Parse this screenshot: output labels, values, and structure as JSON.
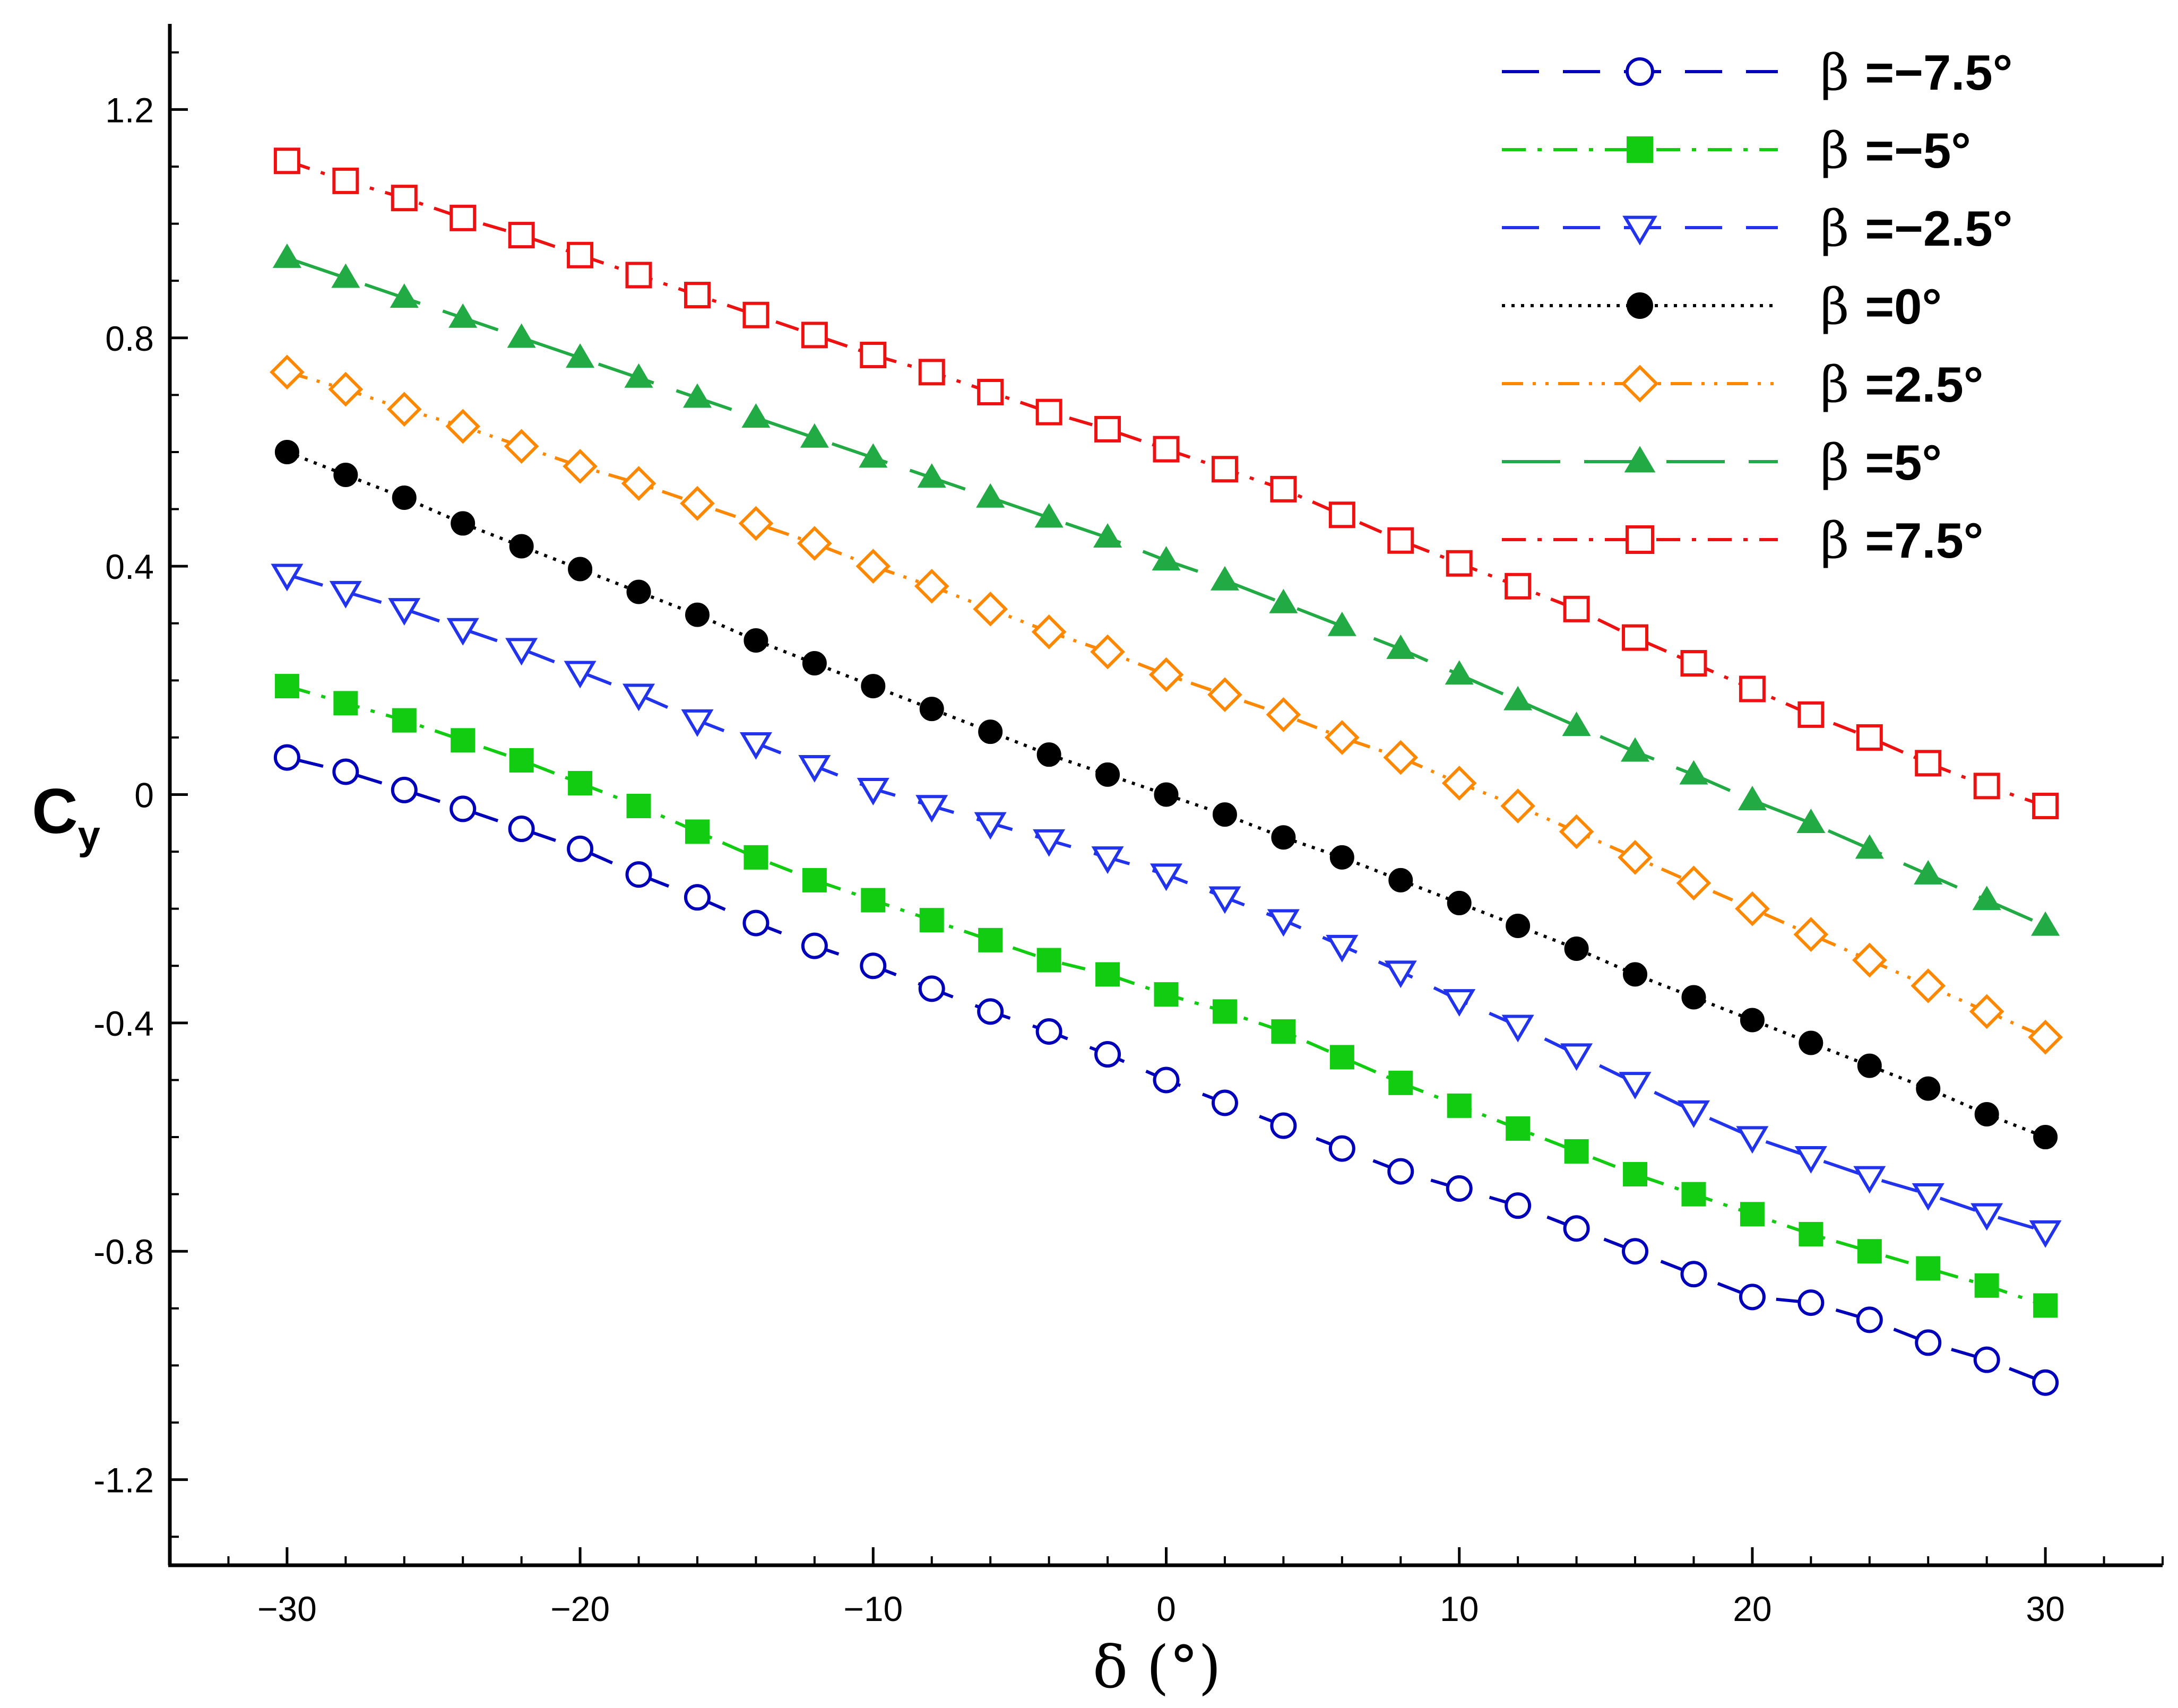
{
  "chart_data": {
    "type": "line",
    "xlabel": "δ (°)",
    "ylabel": "C",
    "ylabel_subscript": "y",
    "xlim": [
      -34,
      34
    ],
    "ylim": [
      -1.35,
      1.35
    ],
    "xticks": [
      -30,
      -20,
      -10,
      0,
      10,
      20,
      30
    ],
    "xtick_labels": [
      "−30",
      "−20",
      "−10",
      "0",
      "10",
      "20",
      "30"
    ],
    "yticks": [
      -1.2,
      -0.8,
      -0.4,
      0,
      0.4,
      0.8,
      1.2
    ],
    "ytick_labels": [
      "-1.2",
      "-0.8",
      "-0.4",
      "0",
      "0.4",
      "0.8",
      "1.2"
    ],
    "grid": false,
    "legend_position": "top-right",
    "x": [
      -30,
      -28,
      -26,
      -24,
      -22,
      -20,
      -18,
      -16,
      -14,
      -12,
      -10,
      -8,
      -6,
      -4,
      -2,
      0,
      2,
      4,
      6,
      8,
      10,
      12,
      14,
      16,
      18,
      20,
      22,
      24,
      26,
      28,
      30
    ],
    "series": [
      {
        "name": "β =−7.5°",
        "legend_beta": "β",
        "legend_value": "=−7.5°",
        "color": "#0000bb",
        "dash": "dash",
        "marker": "circle",
        "filled": false,
        "values": [
          0.065,
          0.04,
          0.008,
          -0.025,
          -0.06,
          -0.095,
          -0.14,
          -0.18,
          -0.225,
          -0.265,
          -0.3,
          -0.34,
          -0.38,
          -0.415,
          -0.455,
          -0.5,
          -0.54,
          -0.58,
          -0.62,
          -0.66,
          -0.69,
          -0.72,
          -0.76,
          -0.8,
          -0.84,
          -0.88,
          -0.89,
          -0.92,
          -0.96,
          -0.99,
          -1.03
        ]
      },
      {
        "name": "β =−5°",
        "legend_beta": "β",
        "legend_value": "=−5°",
        "color": "#11cc11",
        "dash": "dashdot",
        "marker": "square",
        "filled": true,
        "values": [
          0.19,
          0.16,
          0.13,
          0.095,
          0.06,
          0.02,
          -0.02,
          -0.065,
          -0.11,
          -0.15,
          -0.185,
          -0.22,
          -0.255,
          -0.29,
          -0.315,
          -0.35,
          -0.38,
          -0.415,
          -0.46,
          -0.505,
          -0.545,
          -0.585,
          -0.625,
          -0.665,
          -0.7,
          -0.735,
          -0.77,
          -0.8,
          -0.83,
          -0.86,
          -0.895
        ]
      },
      {
        "name": "β =−2.5°",
        "legend_beta": "β",
        "legend_value": "=−2.5°",
        "color": "#2233ee",
        "dash": "dash",
        "marker": "triangle-down",
        "filled": false,
        "values": [
          0.385,
          0.355,
          0.325,
          0.29,
          0.255,
          0.215,
          0.175,
          0.13,
          0.09,
          0.05,
          0.01,
          -0.02,
          -0.05,
          -0.08,
          -0.11,
          -0.14,
          -0.18,
          -0.22,
          -0.265,
          -0.31,
          -0.36,
          -0.405,
          -0.455,
          -0.505,
          -0.555,
          -0.6,
          -0.635,
          -0.67,
          -0.7,
          -0.735,
          -0.765
        ]
      },
      {
        "name": "β =0°",
        "legend_beta": "β",
        "legend_value": "=0°",
        "color": "#000000",
        "dash": "dot",
        "marker": "circle",
        "filled": true,
        "values": [
          0.6,
          0.56,
          0.52,
          0.475,
          0.435,
          0.395,
          0.355,
          0.315,
          0.27,
          0.23,
          0.19,
          0.15,
          0.11,
          0.07,
          0.035,
          0.0,
          -0.035,
          -0.075,
          -0.11,
          -0.15,
          -0.19,
          -0.23,
          -0.27,
          -0.315,
          -0.355,
          -0.395,
          -0.435,
          -0.475,
          -0.515,
          -0.56,
          -0.6
        ]
      },
      {
        "name": "β =2.5°",
        "legend_beta": "β",
        "legend_value": "=2.5°",
        "color": "#ff8800",
        "dash": "dashdotdot",
        "marker": "diamond",
        "filled": false,
        "values": [
          0.74,
          0.71,
          0.675,
          0.645,
          0.61,
          0.575,
          0.545,
          0.51,
          0.475,
          0.44,
          0.4,
          0.365,
          0.325,
          0.285,
          0.25,
          0.21,
          0.175,
          0.14,
          0.1,
          0.065,
          0.02,
          -0.02,
          -0.065,
          -0.11,
          -0.155,
          -0.2,
          -0.245,
          -0.29,
          -0.335,
          -0.38,
          -0.425
        ]
      },
      {
        "name": "β =5°",
        "legend_beta": "β",
        "legend_value": "=5°",
        "color": "#22aa44",
        "dash": "longdash",
        "marker": "triangle-up",
        "filled": true,
        "values": [
          0.94,
          0.905,
          0.87,
          0.835,
          0.8,
          0.765,
          0.73,
          0.695,
          0.66,
          0.625,
          0.59,
          0.555,
          0.52,
          0.485,
          0.45,
          0.41,
          0.375,
          0.335,
          0.295,
          0.255,
          0.21,
          0.165,
          0.12,
          0.075,
          0.035,
          -0.01,
          -0.05,
          -0.095,
          -0.14,
          -0.185,
          -0.23
        ]
      },
      {
        "name": "β =7.5°",
        "legend_beta": "β",
        "legend_value": "=7.5°",
        "color": "#ee1111",
        "dash": "dashdot",
        "marker": "square",
        "filled": false,
        "values": [
          1.11,
          1.075,
          1.045,
          1.01,
          0.98,
          0.945,
          0.91,
          0.875,
          0.84,
          0.805,
          0.77,
          0.74,
          0.705,
          0.67,
          0.64,
          0.605,
          0.57,
          0.535,
          0.49,
          0.445,
          0.405,
          0.365,
          0.325,
          0.275,
          0.23,
          0.185,
          0.14,
          0.1,
          0.055,
          0.015,
          -0.02
        ]
      }
    ]
  }
}
